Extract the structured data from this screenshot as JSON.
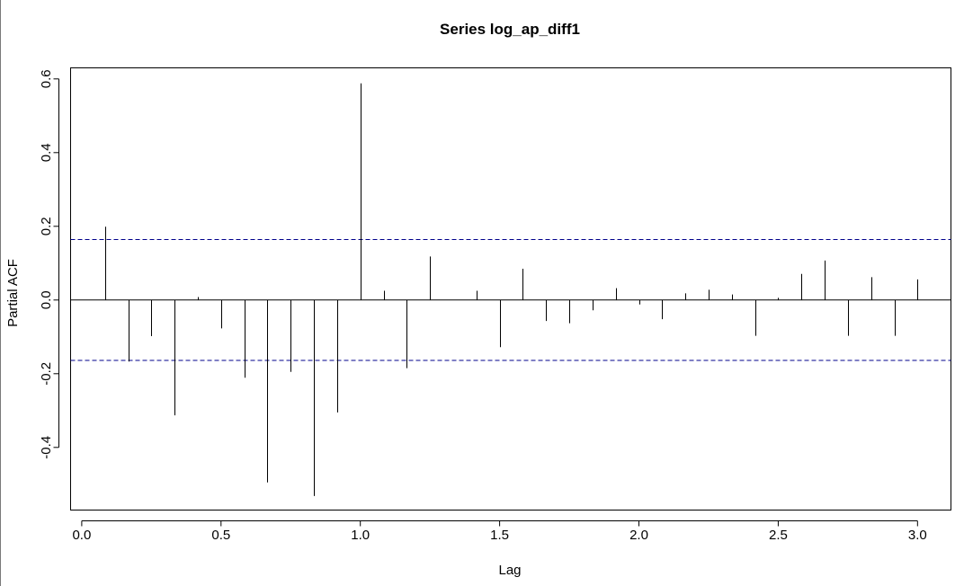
{
  "chart_data": {
    "type": "bar",
    "title": "Series  log_ap_diff1",
    "xlabel": "Lag",
    "ylabel": "Partial ACF",
    "xlim": [
      -0.04,
      3.12
    ],
    "ylim": [
      -0.57,
      0.63
    ],
    "x_ticks": [
      {
        "value": 0.0,
        "label": "0.0"
      },
      {
        "value": 0.5,
        "label": "0.5"
      },
      {
        "value": 1.0,
        "label": "1.0"
      },
      {
        "value": 1.5,
        "label": "1.5"
      },
      {
        "value": 2.0,
        "label": "2.0"
      },
      {
        "value": 2.5,
        "label": "2.5"
      },
      {
        "value": 3.0,
        "label": "3.0"
      }
    ],
    "y_ticks": [
      {
        "value": -0.4,
        "label": "-0.4"
      },
      {
        "value": -0.2,
        "label": "-0.2"
      },
      {
        "value": 0.0,
        "label": "0.0"
      },
      {
        "value": 0.2,
        "label": "0.2"
      },
      {
        "value": 0.4,
        "label": "0.4"
      },
      {
        "value": 0.6,
        "label": "0.6"
      }
    ],
    "confidence_bounds": [
      0.164,
      -0.164
    ],
    "confidence_color": "#00008b",
    "zero_line": true,
    "grid": false,
    "x": [
      0.0833,
      0.1667,
      0.25,
      0.3333,
      0.4167,
      0.5,
      0.5833,
      0.6667,
      0.75,
      0.8333,
      0.9167,
      1.0,
      1.0833,
      1.1667,
      1.25,
      1.3333,
      1.4167,
      1.5,
      1.5833,
      1.6667,
      1.75,
      1.8333,
      1.9167,
      2.0,
      2.0833,
      2.1667,
      2.25,
      2.3333,
      2.4167,
      2.5,
      2.5833,
      2.6667,
      2.75,
      2.8333,
      2.9167,
      3.0
    ],
    "values": [
      0.199,
      -0.167,
      -0.098,
      -0.313,
      0.008,
      -0.077,
      -0.211,
      -0.495,
      -0.195,
      -0.532,
      -0.305,
      0.588,
      0.025,
      -0.185,
      0.118,
      0.0,
      0.025,
      -0.128,
      0.085,
      -0.057,
      -0.063,
      -0.028,
      0.032,
      -0.012,
      -0.052,
      0.018,
      0.028,
      0.015,
      -0.097,
      0.006,
      0.071,
      0.107,
      -0.097,
      0.062,
      -0.097,
      0.056
    ]
  }
}
